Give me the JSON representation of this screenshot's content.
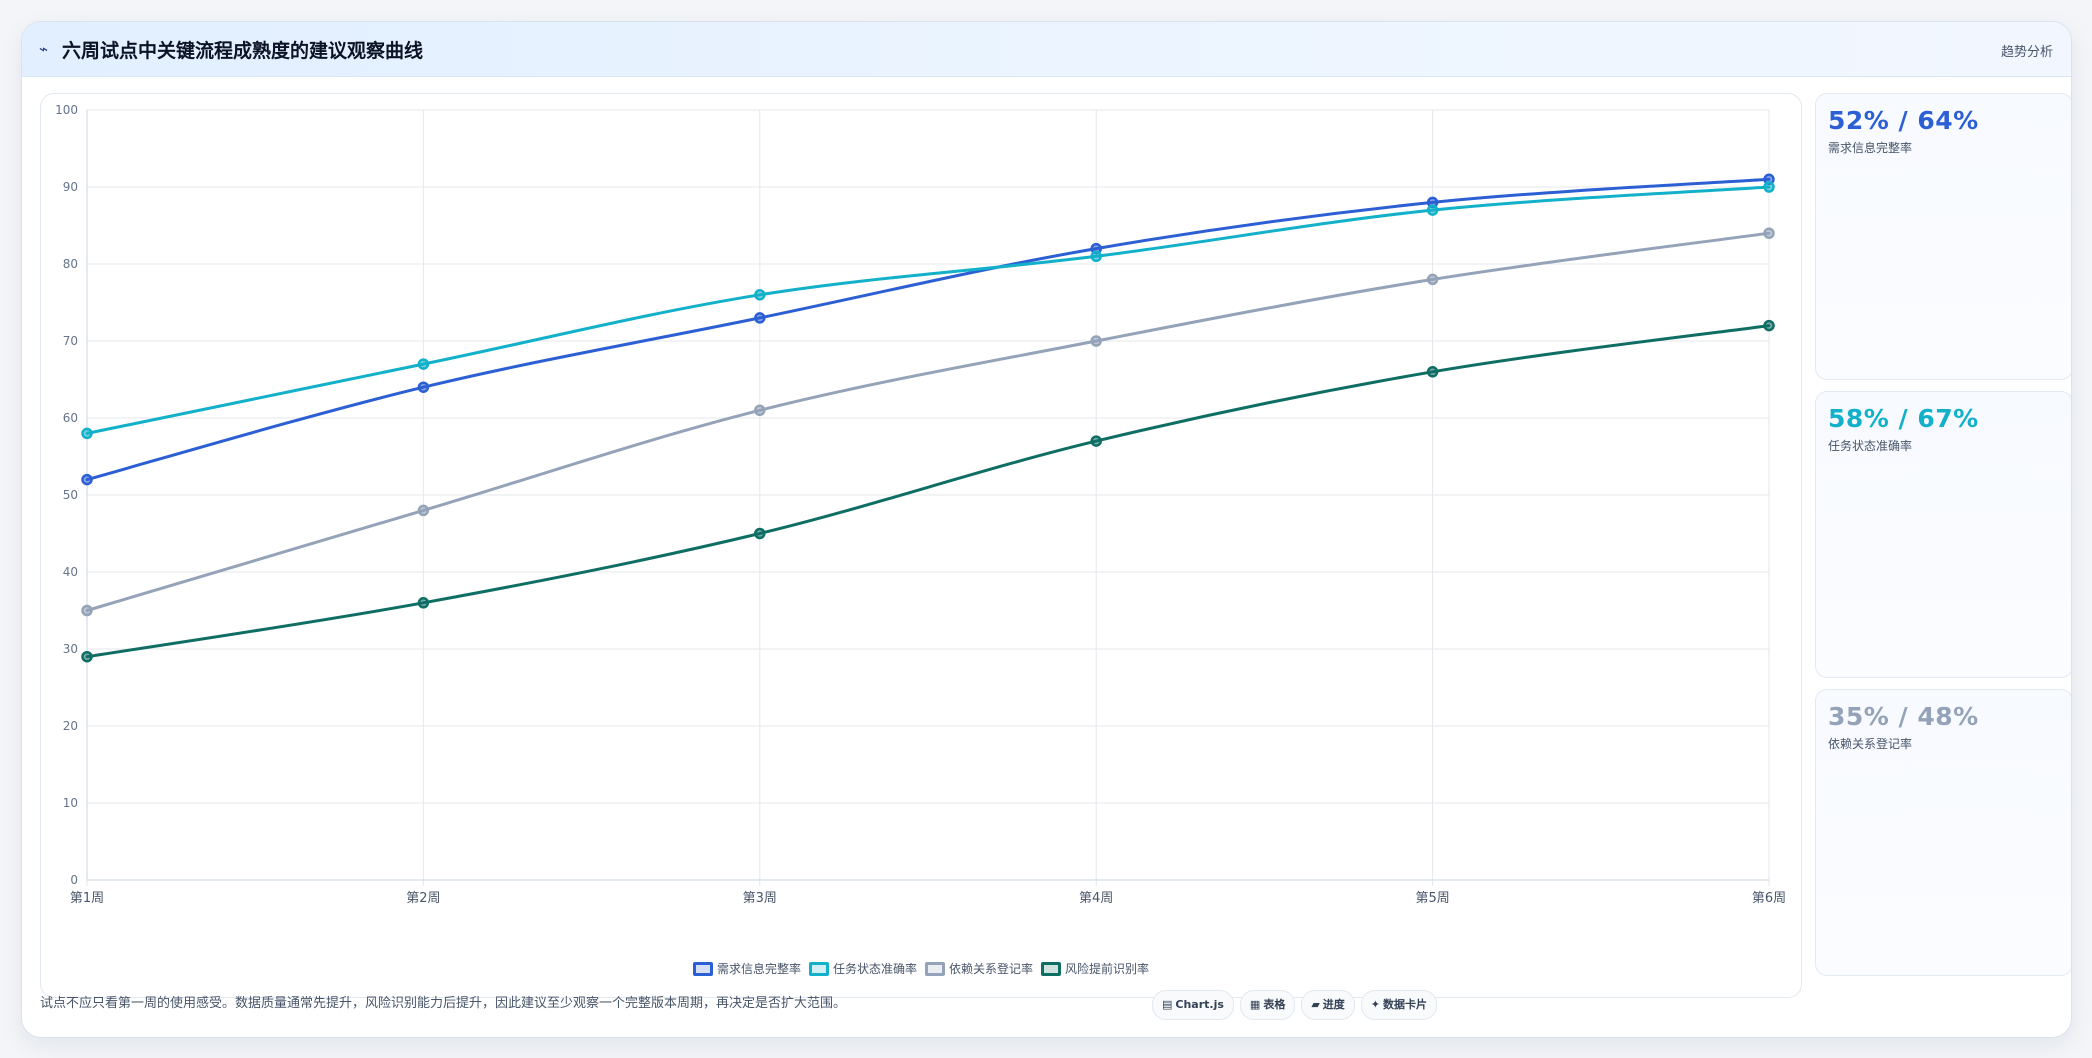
{
  "header": {
    "icon": "trend-line-icon",
    "icon_glyph": "⌁",
    "title": "六周试点中关键流程成熟度的建议观察曲线",
    "tag": "趋势分析"
  },
  "chart_data": {
    "type": "line",
    "categories": [
      "第1周",
      "第2周",
      "第3周",
      "第4周",
      "第5周",
      "第6周"
    ],
    "ylim": [
      0,
      100
    ],
    "yticks": [
      0,
      10,
      20,
      30,
      40,
      50,
      60,
      70,
      80,
      90,
      100
    ],
    "grid": true,
    "legend_position": "bottom",
    "series": [
      {
        "name": "需求信息完整率",
        "color": "#2c5fd4",
        "values": [
          52,
          64,
          73,
          82,
          88,
          91
        ]
      },
      {
        "name": "任务状态准确率",
        "color": "#12b0c9",
        "values": [
          58,
          67,
          76,
          81,
          87,
          90
        ]
      },
      {
        "name": "依赖关系登记率",
        "color": "#94a3b8",
        "values": [
          35,
          48,
          61,
          70,
          78,
          84
        ]
      },
      {
        "name": "风险提前识别率",
        "color": "#0f6e64",
        "values": [
          29,
          36,
          45,
          57,
          66,
          72
        ]
      }
    ]
  },
  "stats": [
    {
      "value": "52% / 64%",
      "label": "需求信息完整率",
      "color": "#2c5fd4"
    },
    {
      "value": "58% / 67%",
      "label": "任务状态准确率",
      "color": "#12b0c9"
    },
    {
      "value": "35% / 48%",
      "label": "依赖关系登记率",
      "color": "#94a3b8"
    }
  ],
  "footnote": "试点不应只看第一周的使用感受。数据质量通常先提升，风险识别能力后提升，因此建议至少观察一个完整版本周期，再决定是否扩大范围。",
  "toolbar": {
    "chips": [
      {
        "icon": "▤",
        "icon_name": "chart-icon",
        "label": "Chart.js"
      },
      {
        "icon": "▦",
        "icon_name": "table-icon",
        "label": "表格"
      },
      {
        "icon": "▰",
        "icon_name": "progress-icon",
        "label": "进度"
      },
      {
        "icon": "✦",
        "icon_name": "sparkle-icon",
        "label": "数据卡片"
      }
    ]
  }
}
